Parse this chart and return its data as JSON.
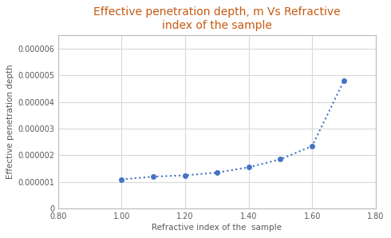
{
  "x": [
    1.0,
    1.1,
    1.2,
    1.3,
    1.4,
    1.5,
    1.6,
    1.7
  ],
  "y": [
    1.1e-06,
    1.2e-06,
    1.25e-06,
    1.35e-06,
    1.55e-06,
    1.85e-06,
    2.35e-06,
    4.8e-06
  ],
  "title_line1": "Effective penetration depth, m Vs Refractive",
  "title_line2": "index of the sample",
  "xlabel": "Refractive index of the  sample",
  "ylabel": "Effective penetration depth",
  "xlim": [
    0.8,
    1.8
  ],
  "ylim": [
    0,
    6.5e-06
  ],
  "xticks": [
    0.8,
    1.0,
    1.2,
    1.4,
    1.6,
    1.8
  ],
  "yticks": [
    0,
    1e-06,
    2e-06,
    3e-06,
    4e-06,
    5e-06,
    6e-06
  ],
  "ytick_labels": [
    "0",
    "0.000001",
    "0.000002",
    "0.000003",
    "0.000004",
    "0.000005",
    "0.000006"
  ],
  "xtick_labels": [
    "0.80",
    "1.00",
    "1.20",
    "1.40",
    "1.60",
    "1.80"
  ],
  "line_color": "#4472C4",
  "marker_color": "#4472C4",
  "title_color": "#C55A11",
  "label_color": "#595959",
  "tick_color": "#595959",
  "background_color": "#FFFFFF",
  "grid_color": "#D9D9D9",
  "title_fontsize": 10,
  "axis_label_fontsize": 7.5,
  "tick_fontsize": 7
}
